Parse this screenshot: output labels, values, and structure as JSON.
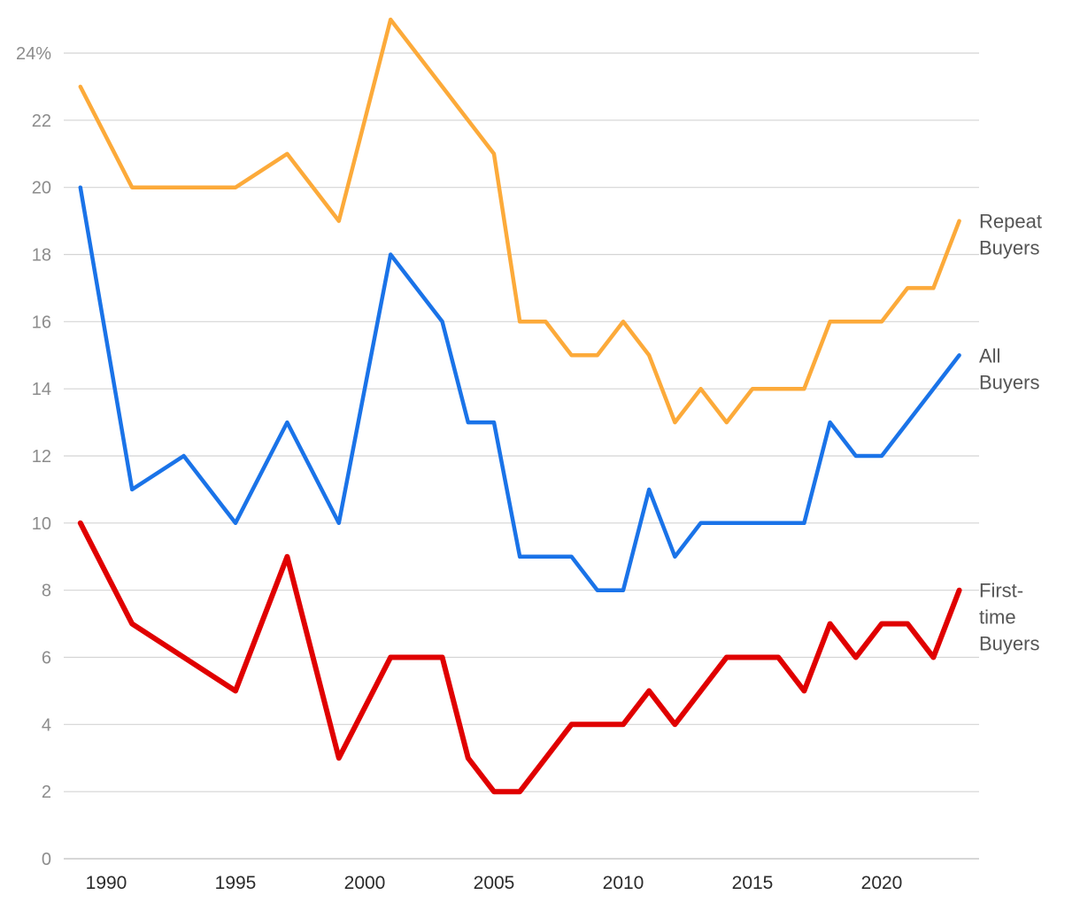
{
  "chart_data": {
    "type": "line",
    "ylim": [
      0,
      24
    ],
    "y_ticks": [
      "0",
      "2",
      "4",
      "6",
      "8",
      "10",
      "12",
      "14",
      "16",
      "18",
      "20",
      "22",
      "24%"
    ],
    "x_ticks": [
      "1990",
      "1995",
      "2000",
      "2005",
      "2010",
      "2015",
      "2020"
    ],
    "grid": true,
    "series": [
      {
        "name": "Repeat Buyers",
        "label_lines": [
          "Repeat",
          "Buyers"
        ],
        "color": "#fcaa3a",
        "points": [
          [
            1989,
            23
          ],
          [
            1991,
            20
          ],
          [
            1993,
            20
          ],
          [
            1995,
            20
          ],
          [
            1997,
            21
          ],
          [
            1999,
            19
          ],
          [
            2001,
            25
          ],
          [
            2003,
            23
          ],
          [
            2005,
            21
          ],
          [
            2006,
            16
          ],
          [
            2007,
            16
          ],
          [
            2008,
            15
          ],
          [
            2009,
            15
          ],
          [
            2010,
            16
          ],
          [
            2011,
            15
          ],
          [
            2012,
            13
          ],
          [
            2013,
            14
          ],
          [
            2014,
            13
          ],
          [
            2015,
            14
          ],
          [
            2016,
            14
          ],
          [
            2017,
            14
          ],
          [
            2018,
            16
          ],
          [
            2019,
            16
          ],
          [
            2020,
            16
          ],
          [
            2021,
            17
          ],
          [
            2022,
            17
          ],
          [
            2023,
            19
          ]
        ]
      },
      {
        "name": "All Buyers",
        "label_lines": [
          "All",
          "Buyers"
        ],
        "color": "#1a73e8",
        "points": [
          [
            1989,
            20
          ],
          [
            1991,
            11
          ],
          [
            1993,
            12
          ],
          [
            1995,
            10
          ],
          [
            1997,
            13
          ],
          [
            1999,
            10
          ],
          [
            2001,
            18
          ],
          [
            2003,
            16
          ],
          [
            2004,
            13
          ],
          [
            2005,
            13
          ],
          [
            2006,
            9
          ],
          [
            2007,
            9
          ],
          [
            2008,
            9
          ],
          [
            2009,
            8
          ],
          [
            2010,
            8
          ],
          [
            2011,
            11
          ],
          [
            2012,
            9
          ],
          [
            2013,
            10
          ],
          [
            2014,
            10
          ],
          [
            2015,
            10
          ],
          [
            2016,
            10
          ],
          [
            2017,
            10
          ],
          [
            2018,
            13
          ],
          [
            2019,
            12
          ],
          [
            2020,
            12
          ],
          [
            2021,
            13
          ],
          [
            2022,
            14
          ],
          [
            2023,
            15
          ]
        ]
      },
      {
        "name": "First-time Buyers",
        "label_lines": [
          "First-",
          "time",
          "Buyers"
        ],
        "color": "#e00000",
        "points": [
          [
            1989,
            10
          ],
          [
            1991,
            7
          ],
          [
            1993,
            6
          ],
          [
            1995,
            5
          ],
          [
            1997,
            9
          ],
          [
            1999,
            3
          ],
          [
            2001,
            6
          ],
          [
            2003,
            6
          ],
          [
            2004,
            3
          ],
          [
            2005,
            2
          ],
          [
            2006,
            2
          ],
          [
            2007,
            3
          ],
          [
            2008,
            4
          ],
          [
            2009,
            4
          ],
          [
            2010,
            4
          ],
          [
            2011,
            5
          ],
          [
            2012,
            4
          ],
          [
            2013,
            5
          ],
          [
            2014,
            6
          ],
          [
            2015,
            6
          ],
          [
            2016,
            6
          ],
          [
            2017,
            5
          ],
          [
            2018,
            7
          ],
          [
            2019,
            6
          ],
          [
            2020,
            7
          ],
          [
            2021,
            7
          ],
          [
            2022,
            6
          ],
          [
            2023,
            8
          ]
        ]
      }
    ]
  }
}
